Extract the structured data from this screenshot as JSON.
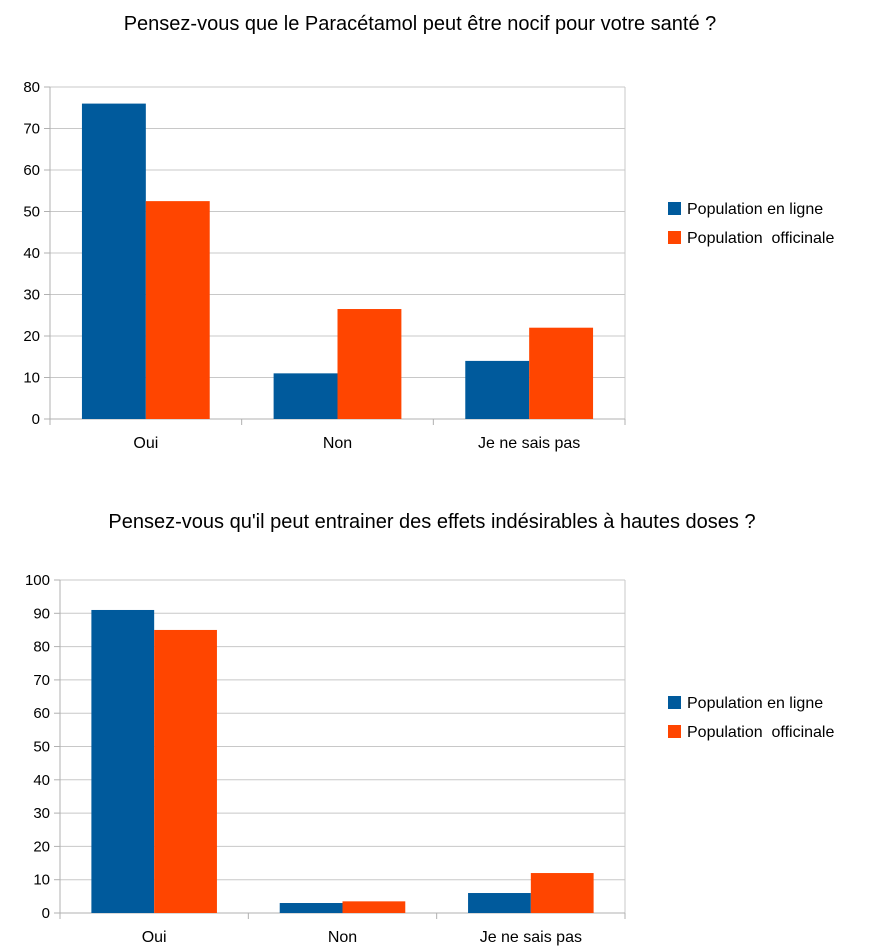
{
  "chart_data": [
    {
      "type": "bar",
      "title": "Pensez-vous que le Paracétamol peut être nocif pour votre santé ?",
      "categories": [
        "Oui",
        "Non",
        "Je ne sais pas"
      ],
      "series": [
        {
          "name": "Population en ligne",
          "values": [
            76,
            11,
            14
          ],
          "color": "#005a9c"
        },
        {
          "name": "Population  officinale",
          "values": [
            52.5,
            26.5,
            22
          ],
          "color": "#ff4500"
        }
      ],
      "ylim": [
        0,
        80
      ],
      "yticks": [
        0,
        10,
        20,
        30,
        40,
        50,
        60,
        70,
        80
      ],
      "grid": true,
      "legend": "right"
    },
    {
      "type": "bar",
      "title": "Pensez-vous qu'il peut entrainer des effets indésirables à hautes doses ?",
      "categories": [
        "Oui",
        "Non",
        "Je ne sais pas"
      ],
      "series": [
        {
          "name": "Population en ligne",
          "values": [
            91,
            3,
            6
          ],
          "color": "#005a9c"
        },
        {
          "name": "Population  officinale",
          "values": [
            85,
            3.5,
            12
          ],
          "color": "#ff4500"
        }
      ],
      "ylim": [
        0,
        100
      ],
      "yticks": [
        0,
        10,
        20,
        30,
        40,
        50,
        60,
        70,
        80,
        90,
        100
      ],
      "grid": true,
      "legend": "right"
    }
  ]
}
